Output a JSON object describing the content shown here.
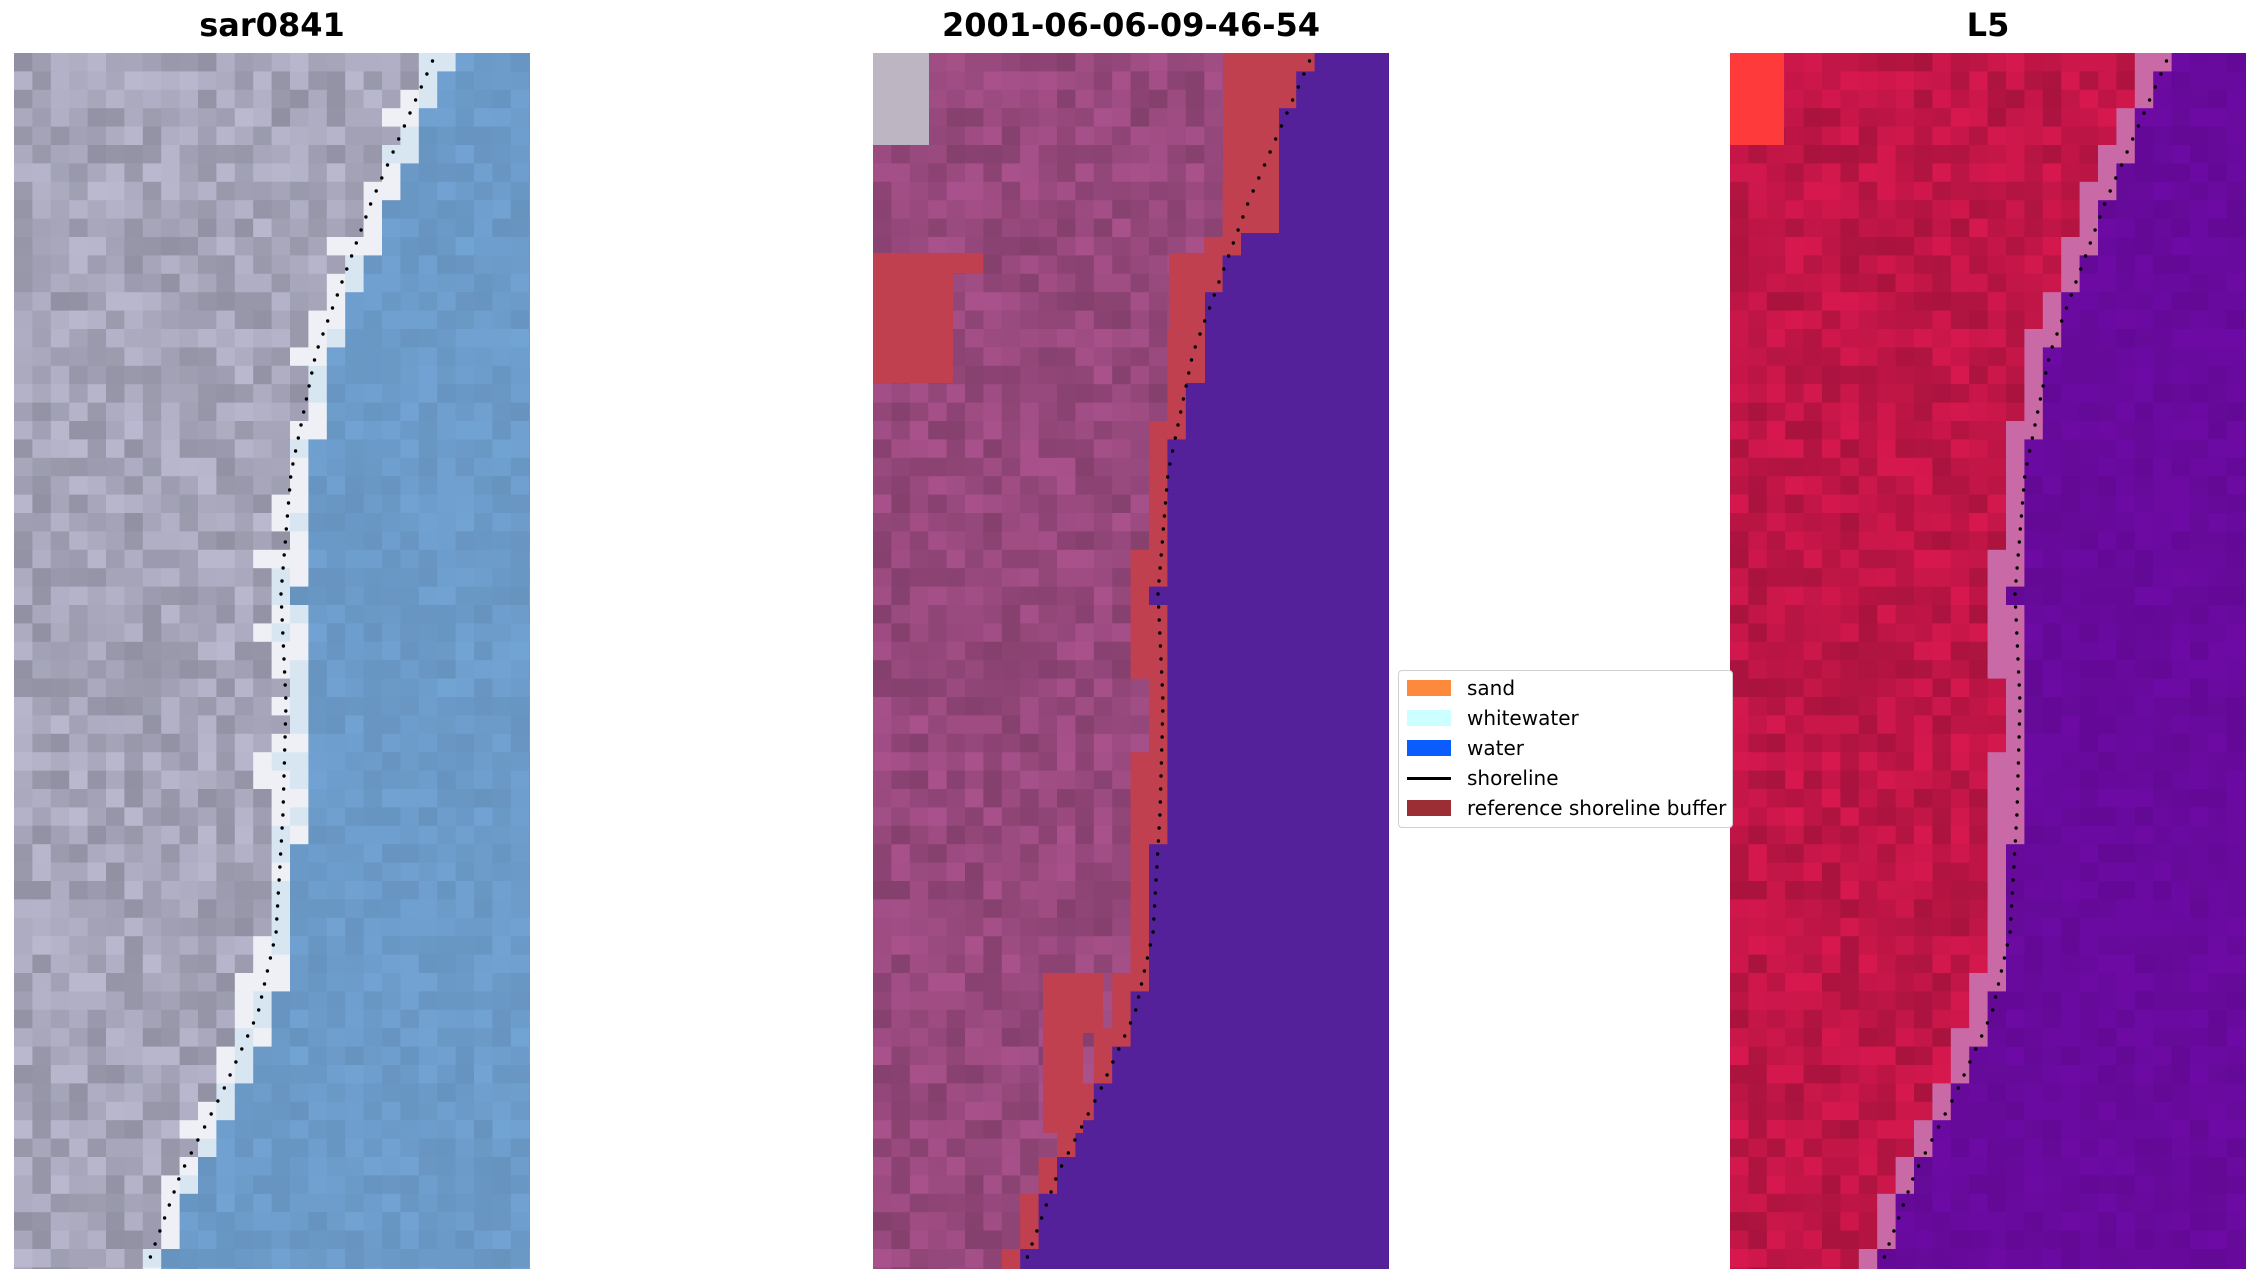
{
  "panels": [
    {
      "title": "sar0841",
      "kind": "rgb"
    },
    {
      "title": "2001-06-06-09-46-54",
      "kind": "classified"
    },
    {
      "title": "L5",
      "kind": "index"
    }
  ],
  "legend": [
    {
      "label": "sand",
      "color": "#fd8a3c",
      "kind": "patch"
    },
    {
      "label": "whitewater",
      "color": "#ccffff",
      "kind": "patch"
    },
    {
      "label": "water",
      "color": "#0a5cff",
      "kind": "patch"
    },
    {
      "label": "shoreline",
      "color": "#000000",
      "kind": "line"
    },
    {
      "label": "reference shoreline buffer",
      "color": "#9b2e35",
      "kind": "patch"
    }
  ],
  "colors": {
    "rgb_land": "#a9a8bd",
    "rgb_water": "#6e9ecd",
    "class_land": "#9a4a7f",
    "class_water": "#55219a",
    "class_buffer": "#c1404f",
    "index_land": "#c41648",
    "index_water": "#6a0aa0"
  }
}
